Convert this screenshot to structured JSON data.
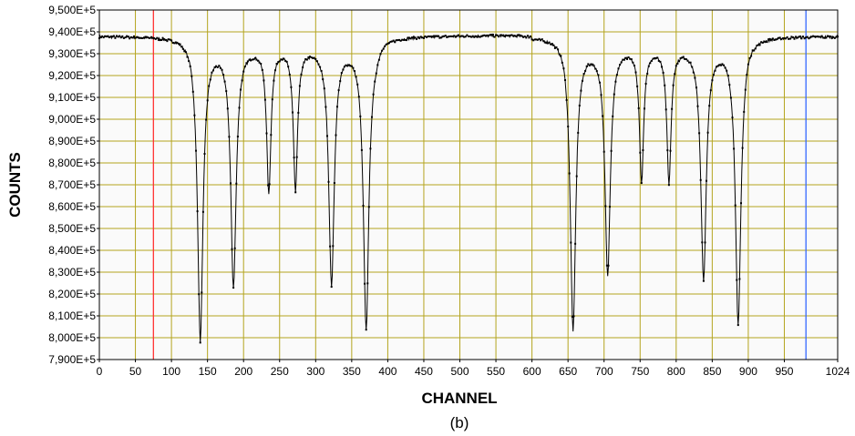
{
  "chart_data": {
    "type": "line",
    "xlabel": "CHANNEL",
    "ylabel": "COUNTS",
    "caption": "(b)",
    "xlim": [
      0,
      1024
    ],
    "ylim": [
      790000,
      950000
    ],
    "x_ticks": [
      0,
      50,
      100,
      150,
      200,
      250,
      300,
      350,
      400,
      450,
      500,
      550,
      600,
      650,
      700,
      750,
      800,
      850,
      900,
      950,
      1024
    ],
    "x_tick_labels": [
      "0",
      "50",
      "100",
      "150",
      "200",
      "250",
      "300",
      "350",
      "400",
      "450",
      "500",
      "550",
      "600",
      "650",
      "700",
      "750",
      "800",
      "850",
      "900",
      "950",
      "1024"
    ],
    "y_ticks": [
      790000,
      800000,
      810000,
      820000,
      830000,
      840000,
      850000,
      860000,
      870000,
      880000,
      890000,
      900000,
      910000,
      920000,
      930000,
      940000,
      950000
    ],
    "y_tick_labels": [
      "7,900E+5",
      "8,000E+5",
      "8,100E+5",
      "8,200E+5",
      "8,300E+5",
      "8,400E+5",
      "8,500E+5",
      "8,600E+5",
      "8,700E+5",
      "8,800E+5",
      "8,900E+5",
      "9,000E+5",
      "9,100E+5",
      "9,200E+5",
      "9,300E+5",
      "9,400E+5",
      "9,500E+5"
    ],
    "grid": true,
    "cursors": [
      {
        "x": 75,
        "color": "#ff3333"
      },
      {
        "x": 980,
        "color": "#3366ff"
      }
    ],
    "baseline_left": 938000,
    "baseline_mid": 939000,
    "inner_level": 933500,
    "dips": [
      {
        "x": 140,
        "min": 799500,
        "width": 4.5
      },
      {
        "x": 186,
        "min": 824500,
        "width": 4.5
      },
      {
        "x": 235,
        "min": 867500,
        "width": 3.5
      },
      {
        "x": 272,
        "min": 868500,
        "width": 3.5
      },
      {
        "x": 322,
        "min": 825500,
        "width": 4.5
      },
      {
        "x": 370,
        "min": 804500,
        "width": 4.5
      },
      {
        "x": 657,
        "min": 804500,
        "width": 4.5
      },
      {
        "x": 705,
        "min": 830500,
        "width": 4.5
      },
      {
        "x": 752,
        "min": 872500,
        "width": 3.5
      },
      {
        "x": 790,
        "min": 872500,
        "width": 3.5
      },
      {
        "x": 838,
        "min": 827500,
        "width": 4.5
      },
      {
        "x": 886,
        "min": 806500,
        "width": 4.5
      }
    ],
    "colors": {
      "background": "#fafafa",
      "grid": "#b4a41e",
      "series": "#000000",
      "axis": "#000000"
    }
  }
}
